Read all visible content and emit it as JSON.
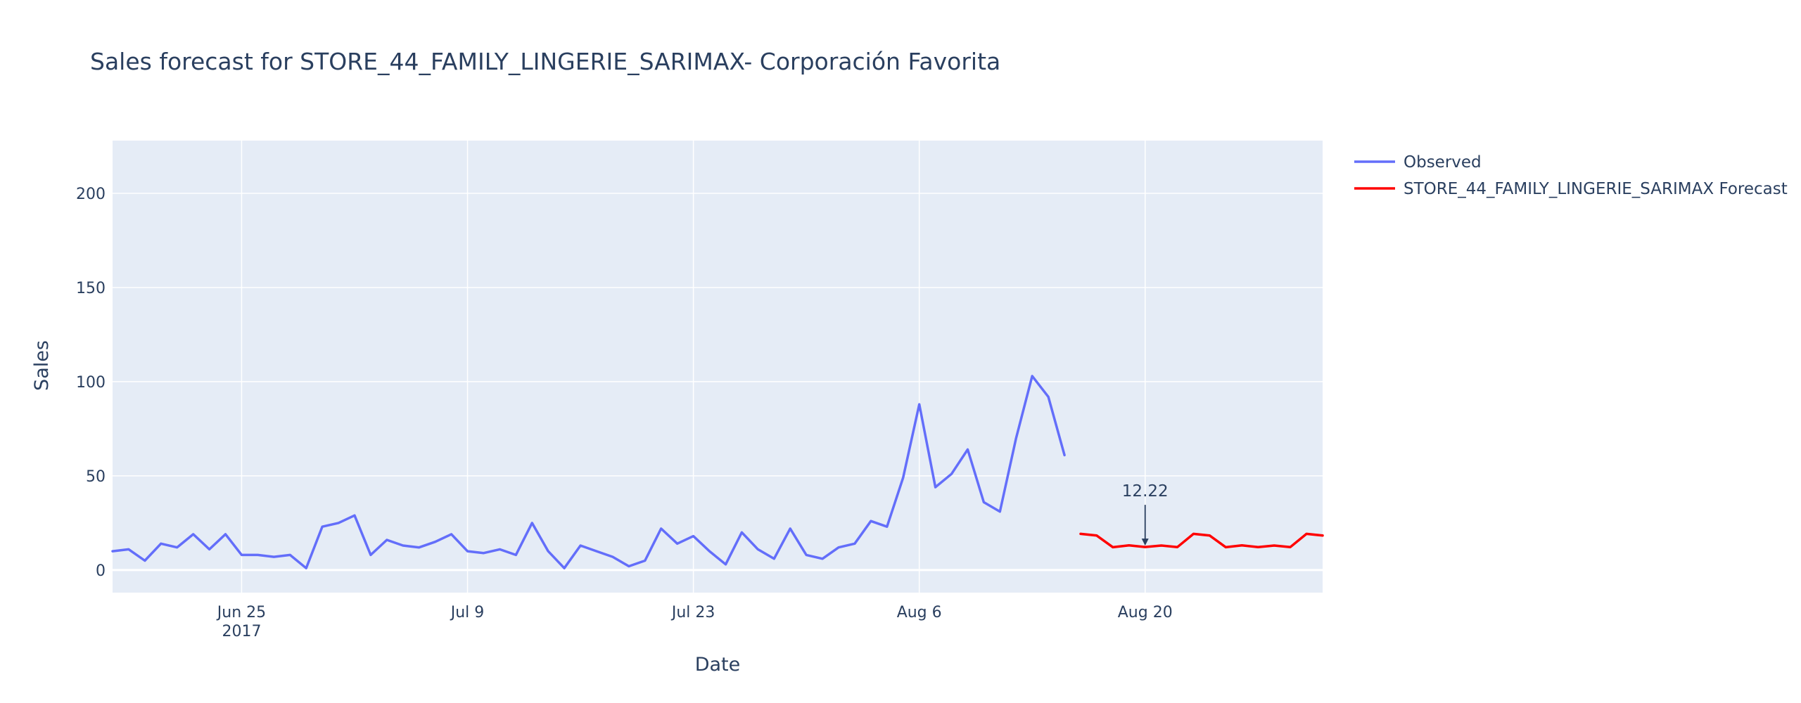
{
  "chart_data": {
    "type": "line",
    "title": "Sales forecast for STORE_44_FAMILY_LINGERIE_SARIMAX- Corporación Favorita",
    "xlabel": "Date",
    "ylabel": "Sales",
    "x_tick_labels": [
      "Jun 25",
      "Jul 9",
      "Jul 23",
      "Aug 6",
      "Aug 20"
    ],
    "x_tick_dates": [
      "2017-06-25",
      "2017-07-09",
      "2017-07-23",
      "2017-08-06",
      "2017-08-20"
    ],
    "x_year_label": "2017",
    "y_ticks": [
      0,
      50,
      100,
      150,
      200
    ],
    "xlim": [
      "2017-06-17",
      "2017-08-31"
    ],
    "ylim": [
      -12,
      228
    ],
    "grid": true,
    "legend_position": "top-right, outside plot",
    "background_color": "#e5ecf6",
    "series": [
      {
        "name": "Observed",
        "color": "#636efa",
        "x": [
          "2017-06-17",
          "2017-06-18",
          "2017-06-19",
          "2017-06-20",
          "2017-06-21",
          "2017-06-22",
          "2017-06-23",
          "2017-06-24",
          "2017-06-25",
          "2017-06-26",
          "2017-06-27",
          "2017-06-28",
          "2017-06-29",
          "2017-06-30",
          "2017-07-01",
          "2017-07-02",
          "2017-07-03",
          "2017-07-04",
          "2017-07-05",
          "2017-07-06",
          "2017-07-07",
          "2017-07-08",
          "2017-07-09",
          "2017-07-10",
          "2017-07-11",
          "2017-07-12",
          "2017-07-13",
          "2017-07-14",
          "2017-07-15",
          "2017-07-16",
          "2017-07-17",
          "2017-07-18",
          "2017-07-19",
          "2017-07-20",
          "2017-07-21",
          "2017-07-22",
          "2017-07-23",
          "2017-07-24",
          "2017-07-25",
          "2017-07-26",
          "2017-07-27",
          "2017-07-28",
          "2017-07-29",
          "2017-07-30",
          "2017-07-31",
          "2017-08-01",
          "2017-08-02",
          "2017-08-03",
          "2017-08-04",
          "2017-08-05",
          "2017-08-06",
          "2017-08-07",
          "2017-08-08",
          "2017-08-09",
          "2017-08-10",
          "2017-08-11",
          "2017-08-12",
          "2017-08-13",
          "2017-08-14",
          "2017-08-15"
        ],
        "values": [
          10,
          11,
          5,
          14,
          12,
          19,
          11,
          19,
          8,
          8,
          7,
          8,
          1,
          23,
          25,
          29,
          8,
          16,
          13,
          12,
          15,
          19,
          10,
          9,
          11,
          8,
          25,
          10,
          1,
          13,
          10,
          7,
          2,
          5,
          22,
          14,
          18,
          10,
          3,
          20,
          11,
          6,
          22,
          8,
          6,
          12,
          14,
          26,
          23,
          49,
          88,
          44,
          51,
          64,
          36,
          31,
          70,
          103,
          92,
          61
        ]
      },
      {
        "name": "STORE_44_FAMILY_LINGERIE_SARIMAX Forecast",
        "color": "#ff0000",
        "x": [
          "2017-08-16",
          "2017-08-17",
          "2017-08-18",
          "2017-08-19",
          "2017-08-20",
          "2017-08-21",
          "2017-08-22",
          "2017-08-23",
          "2017-08-24",
          "2017-08-25",
          "2017-08-26",
          "2017-08-27",
          "2017-08-28",
          "2017-08-29",
          "2017-08-30",
          "2017-08-31"
        ],
        "values": [
          19.2,
          18.3,
          12.1,
          13.1,
          12.22,
          13.0,
          12.2,
          19.2,
          18.3,
          12.1,
          13.1,
          12.2,
          13.0,
          12.2,
          19.2,
          18.3
        ]
      }
    ],
    "annotations": [
      {
        "text": "12.22",
        "x": "2017-08-20",
        "y": 12.22
      }
    ]
  }
}
